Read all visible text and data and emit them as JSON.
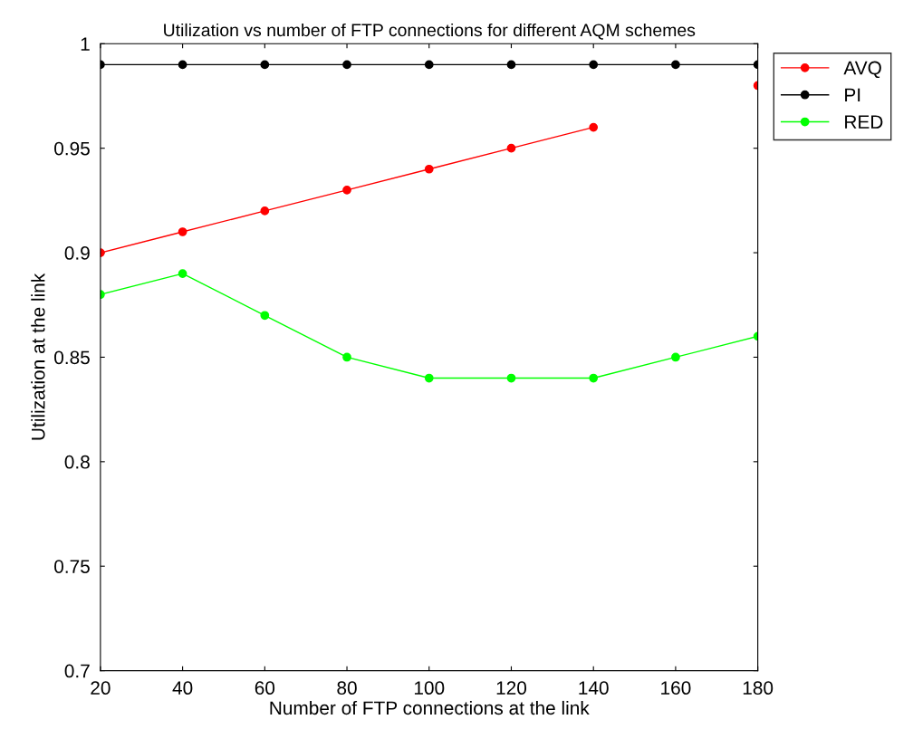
{
  "chart_data": {
    "type": "line",
    "title": "Utilization vs number of FTP connections for different AQM schemes",
    "xlabel": "Number of FTP connections at the link",
    "ylabel": "Utilization at the link",
    "x": [
      20,
      40,
      60,
      80,
      100,
      120,
      140,
      160,
      180
    ],
    "series": [
      {
        "name": "AVQ",
        "color": "#ff0000",
        "values": [
          0.9,
          0.91,
          0.92,
          0.93,
          0.94,
          0.95,
          0.96,
          null,
          0.98
        ]
      },
      {
        "name": "PI",
        "color": "#000000",
        "values": [
          0.99,
          0.99,
          0.99,
          0.99,
          0.99,
          0.99,
          0.99,
          0.99,
          0.99
        ]
      },
      {
        "name": "RED",
        "color": "#00ff00",
        "values": [
          0.88,
          0.89,
          0.87,
          0.85,
          0.84,
          0.84,
          0.84,
          0.85,
          0.86
        ]
      }
    ],
    "xlim": [
      20,
      180
    ],
    "xticks": [
      20,
      40,
      60,
      80,
      100,
      120,
      140,
      160,
      180
    ],
    "ylim": [
      0.7,
      1
    ],
    "yticks": [
      {
        "value": 0.7,
        "label": "0.7"
      },
      {
        "value": 0.75,
        "label": "0.75"
      },
      {
        "value": 0.8,
        "label": "0.8"
      },
      {
        "value": 0.85,
        "label": "0.85"
      },
      {
        "value": 0.9,
        "label": "0.9"
      },
      {
        "value": 0.95,
        "label": "0.95"
      },
      {
        "value": 1,
        "label": "1"
      }
    ],
    "grid": false,
    "legend": "top right",
    "marker": "circle",
    "line_style": "solid"
  }
}
